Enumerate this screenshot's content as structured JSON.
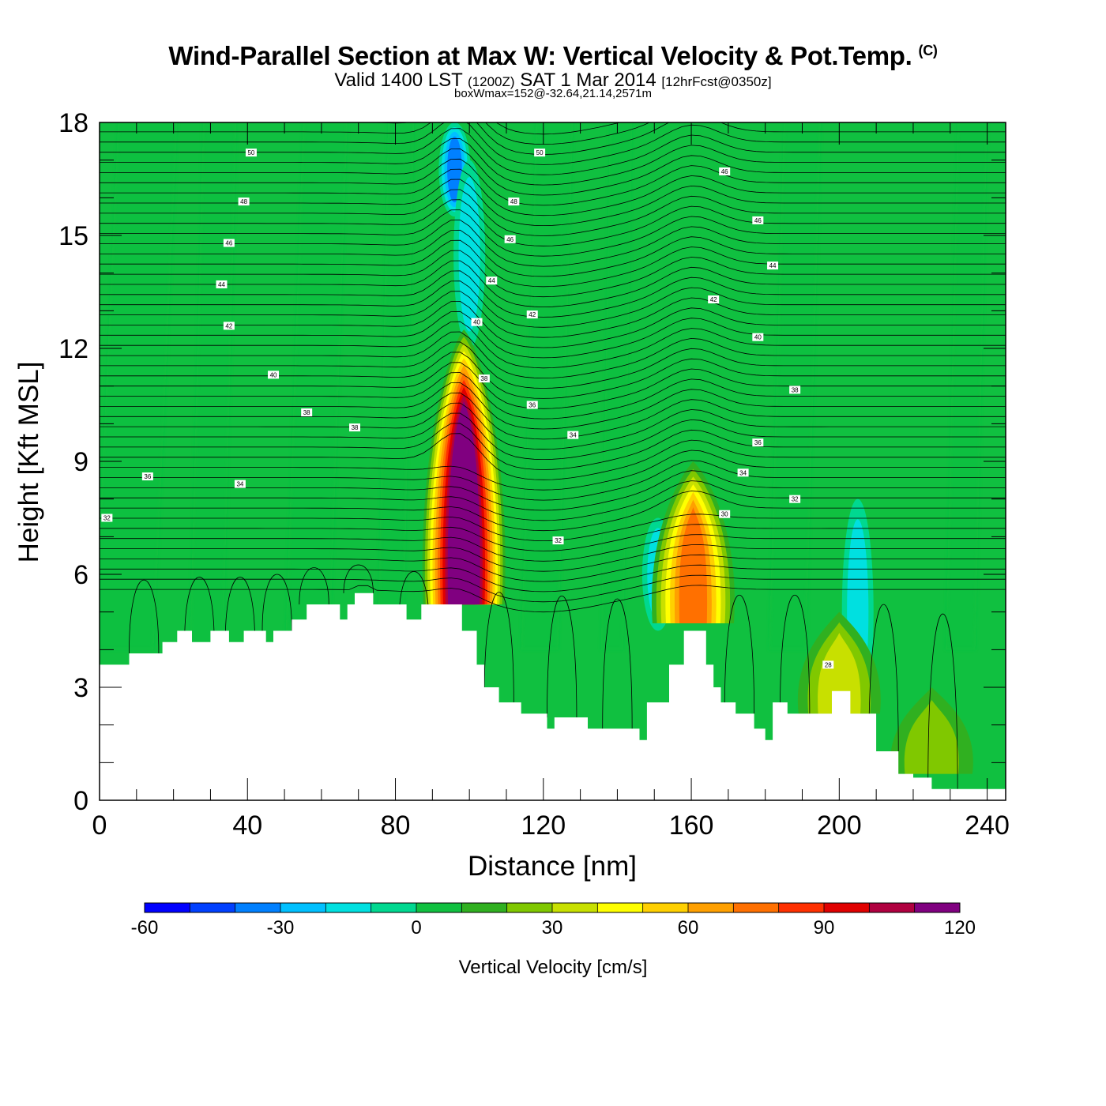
{
  "header": {
    "title": "Wind-Parallel Section at Max W: Vertical Velocity & Pot.Temp.",
    "copyright": "(C)",
    "valid_prefix": "Valid 1400 LST",
    "valid_zulu": "(1200Z)",
    "valid_date": "SAT 1 Mar 2014",
    "forecast": "[12hrFcst@0350z]",
    "box_info": "boxWmax=152@-32.64,21.14,2571m"
  },
  "chart_data": {
    "type": "heatmap",
    "xlabel": "Distance [nm]",
    "ylabel": "Height [Kft MSL]",
    "xlim": [
      0,
      245
    ],
    "ylim": [
      0,
      18
    ],
    "x_ticks": [
      0,
      40,
      80,
      120,
      160,
      200,
      240
    ],
    "y_ticks": [
      0,
      3,
      6,
      9,
      12,
      15,
      18
    ],
    "colorbar": {
      "label": "Vertical Velocity [cm/s]",
      "range": [
        -60,
        140
      ],
      "step": 10,
      "ticks": [
        -60,
        -30,
        0,
        30,
        60,
        90,
        120
      ],
      "colors": [
        "#0000ff",
        "#0040ff",
        "#0080ff",
        "#00c0ff",
        "#00e0e0",
        "#00d890",
        "#10c040",
        "#30b020",
        "#80c800",
        "#c8e000",
        "#ffff00",
        "#ffd000",
        "#ffa000",
        "#ff7000",
        "#ff3000",
        "#e00000",
        "#b00040",
        "#800080"
      ]
    },
    "terrain": {
      "x": [
        0,
        8,
        8,
        17,
        17,
        21,
        21,
        25,
        25,
        30,
        30,
        35,
        35,
        39,
        39,
        45,
        45,
        47,
        47,
        52,
        52,
        56,
        56,
        65,
        65,
        67,
        67,
        69,
        69,
        74,
        74,
        83,
        83,
        87,
        87,
        98,
        98,
        102,
        102,
        104,
        104,
        108,
        108,
        114,
        114,
        121,
        121,
        123,
        123,
        132,
        132,
        146,
        146,
        148,
        148,
        154,
        154,
        158,
        158,
        164,
        164,
        166,
        166,
        168,
        168,
        172,
        172,
        177,
        177,
        180,
        180,
        182,
        182,
        186,
        186,
        198,
        198,
        203,
        203,
        210,
        210,
        216,
        216,
        220,
        220,
        225,
        225,
        234,
        234,
        245
      ],
      "height": [
        3.6,
        3.6,
        3.9,
        3.9,
        4.2,
        4.2,
        4.5,
        4.5,
        4.2,
        4.2,
        4.5,
        4.5,
        4.2,
        4.2,
        4.5,
        4.5,
        4.2,
        4.2,
        4.5,
        4.5,
        4.8,
        4.8,
        5.2,
        5.2,
        4.8,
        4.8,
        5.2,
        5.2,
        5.5,
        5.5,
        5.2,
        5.2,
        4.8,
        4.8,
        5.2,
        5.2,
        4.5,
        4.5,
        3.6,
        3.6,
        3.0,
        3.0,
        2.6,
        2.6,
        2.3,
        2.3,
        1.9,
        1.9,
        2.2,
        2.2,
        1.9,
        1.9,
        1.6,
        1.6,
        2.6,
        2.6,
        3.6,
        3.6,
        4.5,
        4.5,
        3.6,
        3.6,
        3.0,
        3.0,
        2.6,
        2.6,
        2.3,
        2.3,
        1.9,
        1.9,
        1.6,
        1.6,
        2.6,
        2.6,
        2.3,
        2.3,
        2.9,
        2.9,
        2.3,
        2.3,
        1.3,
        1.3,
        0.7,
        0.7,
        0.6,
        0.6,
        0.3,
        0.3,
        0.3,
        0.3
      ]
    },
    "updrafts": [
      {
        "x": 98.5,
        "y_bottom": 5.2,
        "y_top": 12.5,
        "peak": 130
      },
      {
        "x": 160.5,
        "y_bottom": 4.7,
        "y_top": 9.0,
        "peak": 70
      },
      {
        "x": 200,
        "y_bottom": 2.3,
        "y_top": 5.0,
        "peak": 30
      },
      {
        "x": 225,
        "y_bottom": 0.7,
        "y_top": 3.0,
        "peak": 25
      }
    ],
    "downdrafts": [
      {
        "x": 96,
        "y_bottom": 15.5,
        "y_top": 18,
        "peak": -45
      },
      {
        "x": 100,
        "y_bottom": 12.0,
        "y_top": 17.0,
        "peak": -25
      },
      {
        "x": 151,
        "y_bottom": 4.5,
        "y_top": 7.5,
        "peak": -25
      },
      {
        "x": 205,
        "y_bottom": 2.0,
        "y_top": 8.0,
        "peak": -20
      }
    ],
    "theta_contour_labels": [
      {
        "text": "32",
        "x": 2,
        "y": 7.5
      },
      {
        "text": "36",
        "x": 13,
        "y": 8.6
      },
      {
        "text": "34",
        "x": 38,
        "y": 8.4
      },
      {
        "text": "38",
        "x": 56,
        "y": 10.3
      },
      {
        "text": "38",
        "x": 69,
        "y": 9.9
      },
      {
        "text": "40",
        "x": 47,
        "y": 11.3
      },
      {
        "text": "42",
        "x": 35,
        "y": 12.6
      },
      {
        "text": "44",
        "x": 33,
        "y": 13.7
      },
      {
        "text": "46",
        "x": 35,
        "y": 14.8
      },
      {
        "text": "48",
        "x": 39,
        "y": 15.9
      },
      {
        "text": "50",
        "x": 41,
        "y": 17.2
      },
      {
        "text": "50",
        "x": 119,
        "y": 17.2
      },
      {
        "text": "48",
        "x": 112,
        "y": 15.9
      },
      {
        "text": "46",
        "x": 111,
        "y": 14.9
      },
      {
        "text": "44",
        "x": 106,
        "y": 13.8
      },
      {
        "text": "42",
        "x": 117,
        "y": 12.9
      },
      {
        "text": "40",
        "x": 102,
        "y": 12.7
      },
      {
        "text": "38",
        "x": 104,
        "y": 11.2
      },
      {
        "text": "36",
        "x": 117,
        "y": 10.5
      },
      {
        "text": "34",
        "x": 128,
        "y": 9.7
      },
      {
        "text": "32",
        "x": 124,
        "y": 6.9
      },
      {
        "text": "46",
        "x": 169,
        "y": 16.7
      },
      {
        "text": "46",
        "x": 178,
        "y": 15.4
      },
      {
        "text": "44",
        "x": 182,
        "y": 14.2
      },
      {
        "text": "42",
        "x": 166,
        "y": 13.3
      },
      {
        "text": "40",
        "x": 178,
        "y": 12.3
      },
      {
        "text": "38",
        "x": 188,
        "y": 10.9
      },
      {
        "text": "36",
        "x": 178,
        "y": 9.5
      },
      {
        "text": "34",
        "x": 174,
        "y": 8.7
      },
      {
        "text": "32",
        "x": 188,
        "y": 8.0
      },
      {
        "text": "30",
        "x": 169,
        "y": 7.6
      },
      {
        "text": "28",
        "x": 197,
        "y": 3.6
      }
    ]
  }
}
